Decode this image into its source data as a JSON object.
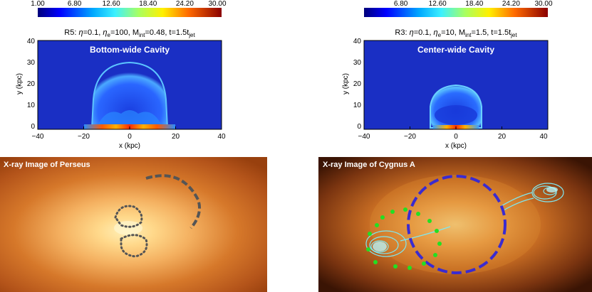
{
  "colorbar": {
    "ticks": [
      "1.00",
      "6.80",
      "12.60",
      "18.40",
      "24.20",
      "30.00"
    ]
  },
  "sim_left": {
    "title_prefix": "R5: ",
    "eta_symbol": "η",
    "eta_value": "=0.1, ",
    "eta_e_sub": "e",
    "eta_e_value": "=100, ",
    "m_label": "M",
    "m_sub": "int",
    "m_value": "=0.48, t=1.5t",
    "t_sub": "jet",
    "cavity_label": "Bottom-wide Cavity",
    "x_ticks": [
      "−40",
      "−20",
      "0",
      "20",
      "40"
    ],
    "y_ticks": [
      "40",
      "30",
      "20",
      "10",
      "0"
    ],
    "xlabel": "x (kpc)",
    "ylabel": "y (kpc)"
  },
  "sim_right": {
    "title_prefix": "R3: ",
    "eta_symbol": "η",
    "eta_value": "=0.1, ",
    "eta_e_sub": "e",
    "eta_e_value": "=10, ",
    "m_label": "M",
    "m_sub": "int",
    "m_value": "=1.5, t=1.5t",
    "t_sub": "jet",
    "cavity_label": "Center-wide Cavity",
    "x_ticks": [
      "−40",
      "−20",
      "0",
      "20",
      "40"
    ],
    "y_ticks": [
      "40",
      "30",
      "20",
      "10",
      "0"
    ],
    "xlabel": "x (kpc)",
    "ylabel": "y (kpc)"
  },
  "xray_left": {
    "label": "X-ray Image of Perseus"
  },
  "xray_right": {
    "label": "X-ray Image of Cygnus A"
  },
  "colors": {
    "sim_background": "#1a2fc4",
    "dashed_circle": "#3a2bd0",
    "green_dots": "#22e022",
    "contours": "#7fe7f0",
    "perseus_marks": "#555555"
  }
}
